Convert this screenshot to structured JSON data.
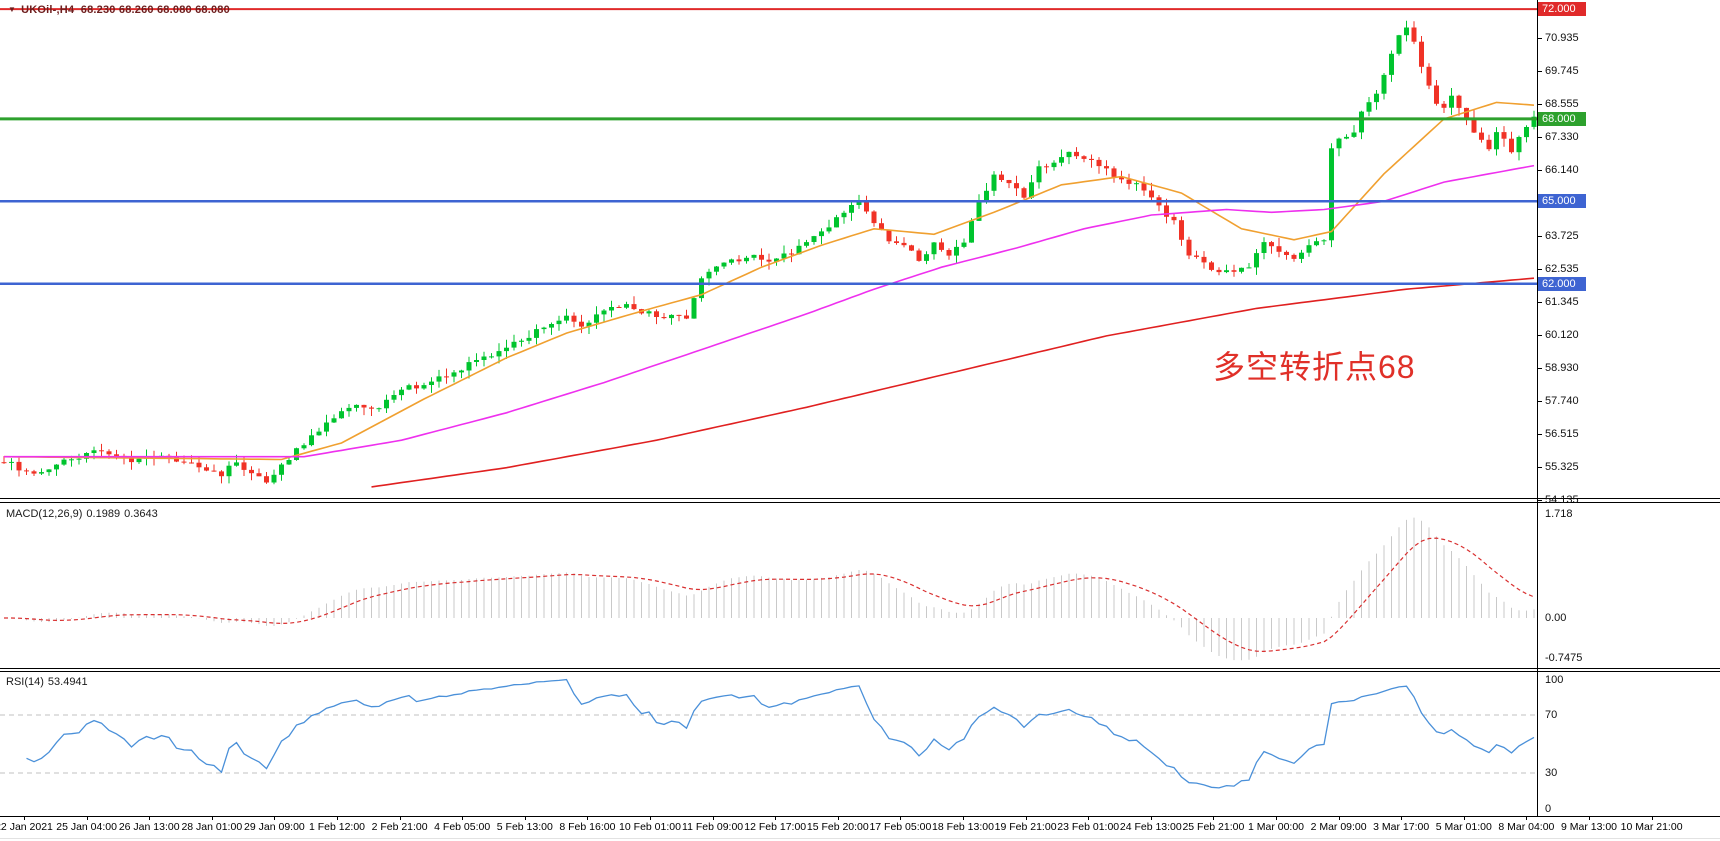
{
  "title": {
    "symbol_period": "UKOil-,H4",
    "ohlc": "68.230 68.260 68.080 68.080"
  },
  "annotation": {
    "text": "多空转折点68",
    "color": "#e03028"
  },
  "colors": {
    "candle_up": "#00c42e",
    "candle_down": "#f03226",
    "ma_fast": "#f0a030",
    "ma_mid": "#ee30ee",
    "ma_slow": "#e02020",
    "level_green": "#2da12d",
    "level_blue": "#3e64d2",
    "level_red": "#e02a2a",
    "macd_hist": "#c9c9c9",
    "macd_signal": "#d93030",
    "rsi_line": "#4a90d9",
    "rsi_levels": "#c0c0c0"
  },
  "indicators": {
    "macd": {
      "label": "MACD(12,26,9)",
      "value_main": "0.1989",
      "value_signal": "0.3643",
      "params": [
        12,
        26,
        9
      ],
      "axis": [
        "1.718",
        "0.00",
        "-0.7475"
      ]
    },
    "rsi": {
      "label": "RSI(14)",
      "value": "53.4941",
      "params": 14,
      "axis": [
        "100",
        "70",
        "30",
        "0"
      ],
      "levels": [
        70,
        30
      ]
    }
  },
  "price_axis": {
    "ticks": [
      {
        "label": "70.935",
        "price": 70.935
      },
      {
        "label": "69.745",
        "price": 69.745
      },
      {
        "label": "68.555",
        "price": 68.555
      },
      {
        "label": "67.330",
        "price": 67.33
      },
      {
        "label": "66.140",
        "price": 66.14
      },
      {
        "label": "63.725",
        "price": 63.725
      },
      {
        "label": "62.535",
        "price": 62.535
      },
      {
        "label": "61.345",
        "price": 61.345
      },
      {
        "label": "60.120",
        "price": 60.12
      },
      {
        "label": "58.930",
        "price": 58.93
      },
      {
        "label": "57.740",
        "price": 57.74
      },
      {
        "label": "56.515",
        "price": 56.515
      },
      {
        "label": "55.325",
        "price": 55.325
      },
      {
        "label": "54.135",
        "price": 54.135
      }
    ],
    "badges": [
      {
        "label": "72.000",
        "price": 72.0,
        "color": "#e02a2a"
      },
      {
        "label": "68.000",
        "price": 68.0,
        "color": "#2da12d"
      },
      {
        "label": "65.000",
        "price": 65.0,
        "color": "#3e64d2"
      },
      {
        "label": "62.000",
        "price": 62.0,
        "color": "#3e64d2"
      }
    ]
  },
  "hlines": [
    {
      "price": 72.0,
      "color": "#e02a2a",
      "width": 2
    },
    {
      "price": 68.0,
      "color": "#2da12d",
      "width": 3
    },
    {
      "price": 65.0,
      "color": "#3e64d2",
      "width": 2.5
    },
    {
      "price": 62.0,
      "color": "#3e64d2",
      "width": 2.5
    }
  ],
  "time_axis": [
    "22 Jan 2021",
    "25 Jan 04:00",
    "26 Jan 13:00",
    "28 Jan 01:00",
    "29 Jan 09:00",
    "1 Feb 12:00",
    "2 Feb 21:00",
    "4 Feb 05:00",
    "5 Feb 13:00",
    "8 Feb 16:00",
    "10 Feb 01:00",
    "11 Feb 09:00",
    "12 Feb 17:00",
    "15 Feb 20:00",
    "17 Feb 05:00",
    "18 Feb 13:00",
    "19 Feb 21:00",
    "23 Feb 01:00",
    "24 Feb 13:00",
    "25 Feb 21:00",
    "1 Mar 00:00",
    "2 Mar 09:00",
    "3 Mar 17:00",
    "5 Mar 01:00",
    "8 Mar 04:00",
    "9 Mar 13:00",
    "10 Mar 21:00"
  ],
  "chart_data": {
    "type": "candlestick",
    "title": "UKOil H4 with MACD(12,26,9) and RSI(14)",
    "ylim": [
      54.16,
      72.33
    ],
    "candle_count": 205,
    "last_close": 68.08,
    "horizontal_levels": [
      72.0,
      68.0,
      65.0,
      62.0
    ],
    "x_labels": [
      "22 Jan 2021",
      "25 Jan 04:00",
      "26 Jan 13:00",
      "28 Jan 01:00",
      "29 Jan 09:00",
      "1 Feb 12:00",
      "2 Feb 21:00",
      "4 Feb 05:00",
      "5 Feb 13:00",
      "8 Feb 16:00",
      "10 Feb 01:00",
      "11 Feb 09:00",
      "12 Feb 17:00",
      "15 Feb 20:00",
      "17 Feb 05:00",
      "18 Feb 13:00",
      "19 Feb 21:00",
      "23 Feb 01:00",
      "24 Feb 13:00",
      "25 Feb 21:00",
      "1 Mar 00:00",
      "2 Mar 09:00",
      "3 Mar 17:00",
      "5 Mar 01:00",
      "8 Mar 04:00",
      "9 Mar 13:00",
      "10 Mar 21:00"
    ],
    "price_path_anchors": [
      [
        0,
        55.5
      ],
      [
        4,
        55.1
      ],
      [
        8,
        55.6
      ],
      [
        13,
        55.9
      ],
      [
        17,
        55.5
      ],
      [
        21,
        55.8
      ],
      [
        25,
        55.4
      ],
      [
        29,
        55.1
      ],
      [
        31,
        55.5
      ],
      [
        35,
        54.8
      ],
      [
        37,
        55.3
      ],
      [
        40,
        56.2
      ],
      [
        44,
        57.2
      ],
      [
        47,
        57.6
      ],
      [
        50,
        57.4
      ],
      [
        53,
        58.2
      ],
      [
        56,
        58.3
      ],
      [
        60,
        58.8
      ],
      [
        64,
        59.3
      ],
      [
        68,
        59.8
      ],
      [
        71,
        60.3
      ],
      [
        75,
        60.8
      ],
      [
        77,
        60.5
      ],
      [
        80,
        61.0
      ],
      [
        83,
        61.2
      ],
      [
        86,
        60.9
      ],
      [
        89,
        60.8
      ],
      [
        91,
        60.7
      ],
      [
        93,
        62.3
      ],
      [
        96,
        62.7
      ],
      [
        99,
        63.0
      ],
      [
        102,
        62.8
      ],
      [
        105,
        63.1
      ],
      [
        109,
        63.8
      ],
      [
        112,
        64.6
      ],
      [
        114,
        65.1
      ],
      [
        116,
        64.2
      ],
      [
        118,
        63.6
      ],
      [
        120,
        63.3
      ],
      [
        122,
        62.9
      ],
      [
        124,
        63.4
      ],
      [
        126,
        63.1
      ],
      [
        128,
        63.6
      ],
      [
        130,
        64.9
      ],
      [
        132,
        66.0
      ],
      [
        134,
        65.6
      ],
      [
        136,
        65.2
      ],
      [
        138,
        66.2
      ],
      [
        140,
        66.3
      ],
      [
        142,
        66.8
      ],
      [
        144,
        66.5
      ],
      [
        146,
        66.3
      ],
      [
        148,
        66.0
      ],
      [
        150,
        65.6
      ],
      [
        152,
        65.5
      ],
      [
        154,
        64.9
      ],
      [
        156,
        64.2
      ],
      [
        158,
        63.1
      ],
      [
        160,
        62.7
      ],
      [
        162,
        62.5
      ],
      [
        164,
        62.4
      ],
      [
        166,
        62.7
      ],
      [
        168,
        63.5
      ],
      [
        170,
        63.2
      ],
      [
        172,
        62.9
      ],
      [
        174,
        63.5
      ],
      [
        176,
        63.6
      ],
      [
        177,
        67.0
      ],
      [
        179,
        67.4
      ],
      [
        180,
        67.6
      ],
      [
        181,
        68.3
      ],
      [
        183,
        68.9
      ],
      [
        184,
        69.5
      ],
      [
        185,
        70.3
      ],
      [
        186,
        71.0
      ],
      [
        187,
        71.3
      ],
      [
        188,
        70.7
      ],
      [
        189,
        70.0
      ],
      [
        190,
        69.2
      ],
      [
        191,
        68.6
      ],
      [
        192,
        68.3
      ],
      [
        193,
        68.9
      ],
      [
        194,
        68.5
      ],
      [
        195,
        68.0
      ],
      [
        196,
        67.5
      ],
      [
        197,
        67.2
      ],
      [
        198,
        67.0
      ],
      [
        199,
        67.4
      ],
      [
        200,
        67.2
      ],
      [
        201,
        66.9
      ],
      [
        202,
        67.3
      ],
      [
        204,
        68.08
      ]
    ],
    "moving_averages": [
      {
        "name": "fast",
        "color": "#f0a030",
        "start": 0,
        "anchors": [
          [
            0,
            55.7
          ],
          [
            37,
            55.6
          ],
          [
            45,
            56.2
          ],
          [
            56,
            57.8
          ],
          [
            67,
            59.3
          ],
          [
            75,
            60.2
          ],
          [
            85,
            61.0
          ],
          [
            93,
            61.6
          ],
          [
            101,
            62.6
          ],
          [
            109,
            63.4
          ],
          [
            116,
            64.0
          ],
          [
            124,
            63.8
          ],
          [
            132,
            64.6
          ],
          [
            141,
            65.6
          ],
          [
            149,
            65.9
          ],
          [
            157,
            65.3
          ],
          [
            165,
            64.0
          ],
          [
            172,
            63.6
          ],
          [
            177,
            63.9
          ],
          [
            184,
            66.0
          ],
          [
            192,
            68.0
          ],
          [
            199,
            68.6
          ],
          [
            204,
            68.5
          ]
        ]
      },
      {
        "name": "mid",
        "color": "#ee30ee",
        "start": 0,
        "anchors": [
          [
            0,
            55.7
          ],
          [
            40,
            55.7
          ],
          [
            53,
            56.3
          ],
          [
            67,
            57.3
          ],
          [
            80,
            58.4
          ],
          [
            93,
            59.6
          ],
          [
            107,
            60.9
          ],
          [
            116,
            61.8
          ],
          [
            125,
            62.6
          ],
          [
            135,
            63.3
          ],
          [
            144,
            64.0
          ],
          [
            153,
            64.5
          ],
          [
            163,
            64.7
          ],
          [
            169,
            64.6
          ],
          [
            176,
            64.7
          ],
          [
            184,
            65.0
          ],
          [
            192,
            65.7
          ],
          [
            204,
            66.3
          ]
        ]
      },
      {
        "name": "slow",
        "color": "#e02020",
        "start": 49,
        "anchors": [
          [
            49,
            54.6
          ],
          [
            67,
            55.3
          ],
          [
            87,
            56.3
          ],
          [
            107,
            57.5
          ],
          [
            127,
            58.8
          ],
          [
            147,
            60.1
          ],
          [
            167,
            61.1
          ],
          [
            187,
            61.8
          ],
          [
            204,
            62.2
          ]
        ]
      }
    ],
    "indicators": {
      "macd": {
        "params": [
          12,
          26,
          9
        ],
        "current_main": 0.1989,
        "current_signal": 0.3643,
        "axis_range": [
          -0.7475,
          1.718
        ]
      },
      "rsi": {
        "params": 14,
        "current": 53.4941,
        "levels": [
          70,
          30
        ],
        "axis_range": [
          0,
          100
        ]
      }
    }
  }
}
